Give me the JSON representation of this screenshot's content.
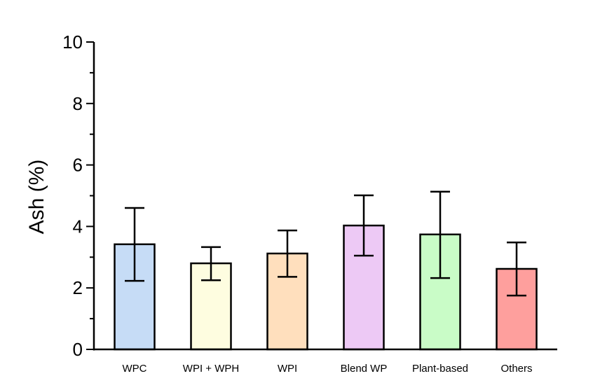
{
  "chart_data": {
    "type": "bar",
    "title": "",
    "xlabel": "",
    "ylabel": "Ash  (%)",
    "ylim": [
      0,
      10
    ],
    "yticks": [
      "0",
      "2",
      "4",
      "6",
      "8",
      "10"
    ],
    "grid": false,
    "categories": [
      "WPC",
      "WPI + WPH",
      "WPI",
      "Blend WP",
      "Plant-based",
      "Others"
    ],
    "values": [
      3.42,
      2.8,
      3.12,
      4.03,
      3.74,
      2.62
    ],
    "error_upper": [
      4.6,
      3.33,
      3.87,
      5.01,
      5.13,
      3.48
    ],
    "error_lower": [
      2.23,
      2.25,
      2.36,
      3.05,
      2.32,
      1.75
    ],
    "colors": [
      "#c6dcf6",
      "#fefde0",
      "#ffdfbd",
      "#edc9f5",
      "#c9fcc7",
      "#fe9f9d"
    ]
  }
}
